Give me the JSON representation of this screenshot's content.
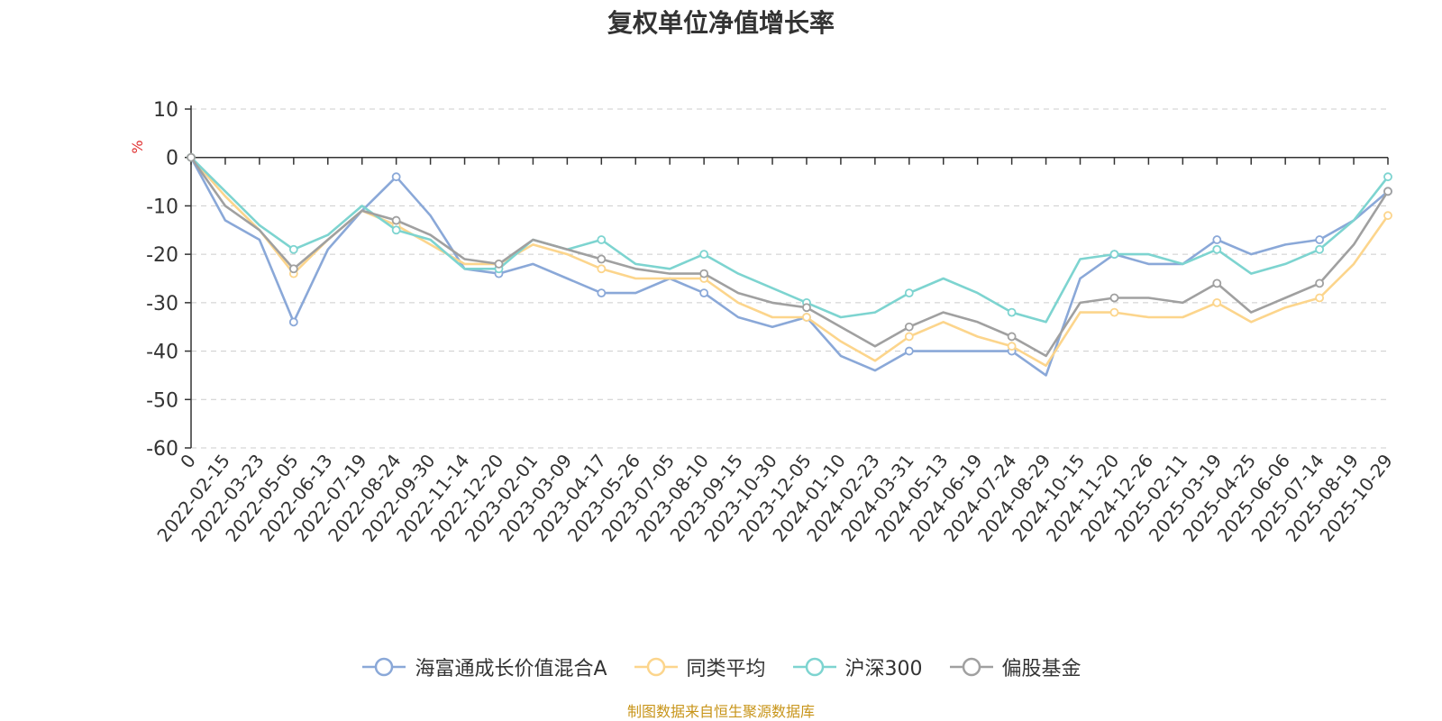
{
  "chart_data": {
    "type": "line",
    "title": "复权单位净值增长率",
    "ylabel": "%",
    "ylim": [
      -60,
      10
    ],
    "yticks": [
      "10",
      "0",
      "-10",
      "-20",
      "-30",
      "-40",
      "-50",
      "-60"
    ],
    "categories": [
      "0",
      "2022-02-15",
      "2022-03-23",
      "2022-05-05",
      "2022-06-13",
      "2022-07-19",
      "2022-08-24",
      "2022-09-30",
      "2022-11-14",
      "2022-12-20",
      "2023-02-01",
      "2023-03-09",
      "2023-04-17",
      "2023-05-26",
      "2023-07-05",
      "2023-08-10",
      "2023-09-15",
      "2023-10-30",
      "2023-12-05",
      "2024-01-10",
      "2024-02-23",
      "2024-03-31",
      "2024-05-13",
      "2024-06-19",
      "2024-07-24",
      "2024-08-29",
      "2024-10-15",
      "2024-11-20",
      "2024-12-26",
      "2025-02-11",
      "2025-03-19",
      "2025-04-25",
      "2025-06-06",
      "2025-07-14",
      "2025-08-19",
      "2025-10-29"
    ],
    "series": [
      {
        "name": "海富通成长价值混合A",
        "color": "#8aa8d8",
        "values": [
          0,
          -13,
          -17,
          -34,
          -19,
          -11,
          -4,
          -12,
          -23,
          -24,
          -22,
          -25,
          -28,
          -28,
          -25,
          -28,
          -33,
          -35,
          -33,
          -41,
          -44,
          -40,
          -40,
          -40,
          -40,
          -45,
          -25,
          -20,
          -22,
          -22,
          -17,
          -20,
          -18,
          -17,
          -13,
          -7
        ]
      },
      {
        "name": "同类平均",
        "color": "#fcd58c",
        "values": [
          0,
          -8,
          -15,
          -24,
          -17,
          -11,
          -14,
          -18,
          -22,
          -22,
          -18,
          -20,
          -23,
          -25,
          -25,
          -25,
          -30,
          -33,
          -33,
          -38,
          -42,
          -37,
          -34,
          -37,
          -39,
          -43,
          -32,
          -32,
          -33,
          -33,
          -30,
          -34,
          -31,
          -29,
          -22,
          -12
        ]
      },
      {
        "name": "沪深300",
        "color": "#7dd4d0",
        "values": [
          0,
          -7,
          -14,
          -19,
          -16,
          -10,
          -15,
          -17,
          -23,
          -23,
          -17,
          -19,
          -17,
          -22,
          -23,
          -20,
          -24,
          -27,
          -30,
          -33,
          -32,
          -28,
          -25,
          -28,
          -32,
          -34,
          -21,
          -20,
          -20,
          -22,
          -19,
          -24,
          -22,
          -19,
          -13,
          -4
        ]
      },
      {
        "name": "偏股基金",
        "color": "#a0a0a0",
        "values": [
          0,
          -10,
          -15,
          -23,
          -17,
          -11,
          -13,
          -16,
          -21,
          -22,
          -17,
          -19,
          -21,
          -23,
          -24,
          -24,
          -28,
          -30,
          -31,
          -35,
          -39,
          -35,
          -32,
          -34,
          -37,
          -41,
          -30,
          -29,
          -29,
          -30,
          -26,
          -32,
          -29,
          -26,
          -18,
          -7
        ]
      }
    ]
  },
  "source_text": "制图数据来自恒生聚源数据库"
}
